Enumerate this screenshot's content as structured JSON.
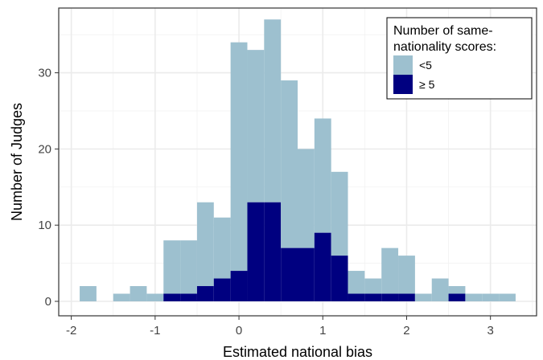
{
  "chart_data": {
    "type": "bar",
    "subtype": "stacked-histogram",
    "xlabel": "Estimated national bias",
    "ylabel": "Number of Judges",
    "xlim": [
      -2.15,
      3.55
    ],
    "ylim": [
      -1.9,
      38.5
    ],
    "x_ticks": [
      -2,
      -1,
      0,
      1,
      2,
      3
    ],
    "y_ticks": [
      0,
      10,
      20,
      30
    ],
    "grid": true,
    "bin_width": 0.2,
    "bin_starts": [
      -1.9,
      -1.7,
      -1.5,
      -1.3,
      -1.1,
      -0.9,
      -0.7,
      -0.5,
      -0.3,
      -0.1,
      0.1,
      0.3,
      0.5,
      0.7,
      0.9,
      1.1,
      1.3,
      1.5,
      1.7,
      1.9,
      2.1,
      2.3,
      2.5,
      2.7,
      2.9,
      3.1
    ],
    "series": [
      {
        "name": "<5",
        "color": "#9dc0cf",
        "values": [
          2,
          0,
          1,
          2,
          1,
          7,
          7,
          11,
          8,
          30,
          20,
          24,
          22,
          13,
          15,
          11,
          3,
          2,
          6,
          5,
          1,
          3,
          1,
          1,
          1,
          1
        ]
      },
      {
        "name": "≥ 5",
        "color": "#000080",
        "values": [
          0,
          0,
          0,
          0,
          0,
          1,
          1,
          2,
          3,
          4,
          13,
          13,
          7,
          7,
          9,
          6,
          1,
          1,
          1,
          1,
          0,
          0,
          1,
          0,
          0,
          0
        ]
      }
    ],
    "legend": {
      "title_lines": [
        "Number of same-",
        "nationality scores:"
      ],
      "placement": "top-right"
    }
  }
}
